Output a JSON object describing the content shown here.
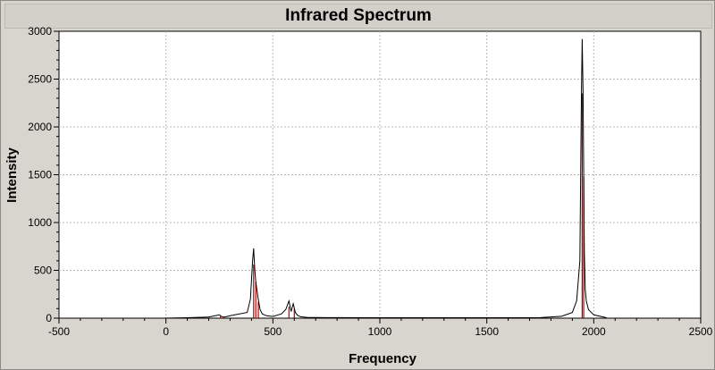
{
  "chart_data": {
    "type": "line",
    "title": "Infrared Spectrum",
    "xlabel": "Frequency",
    "ylabel": "Intensity",
    "xlim": [
      -500,
      2500
    ],
    "ylim": [
      0,
      3000
    ],
    "x_ticks": [
      -500,
      0,
      500,
      1000,
      1500,
      2000,
      2500
    ],
    "y_ticks": [
      0,
      500,
      1000,
      1500,
      2000,
      2500,
      3000
    ],
    "grid": true,
    "legend": "none",
    "colors": {
      "spectrum": "#000000",
      "stick": "#b00000",
      "grid": "#b8b8b8",
      "plot_bg": "#ffffff"
    },
    "spectrum": {
      "x": [
        -10,
        100,
        200,
        250,
        260,
        270,
        300,
        380,
        395,
        405,
        410,
        415,
        420,
        425,
        430,
        440,
        450,
        470,
        500,
        540,
        560,
        575,
        585,
        595,
        605,
        615,
        630,
        660,
        750,
        1000,
        1500,
        1750,
        1850,
        1900,
        1920,
        1935,
        1942,
        1946,
        1950,
        1953,
        1956,
        1960,
        1965,
        1975,
        2000,
        2060
      ],
      "y": [
        0,
        5,
        12,
        35,
        18,
        10,
        25,
        60,
        200,
        600,
        730,
        520,
        380,
        300,
        220,
        90,
        45,
        25,
        18,
        45,
        90,
        180,
        70,
        150,
        60,
        30,
        15,
        8,
        6,
        5,
        5,
        6,
        20,
        60,
        180,
        600,
        2300,
        2920,
        2350,
        1500,
        700,
        300,
        180,
        90,
        35,
        5
      ]
    },
    "sticks": {
      "x": [
        255,
        410,
        420,
        432,
        575,
        600,
        1946,
        1953
      ],
      "y": [
        20,
        560,
        380,
        170,
        120,
        100,
        2350,
        1480
      ]
    }
  }
}
